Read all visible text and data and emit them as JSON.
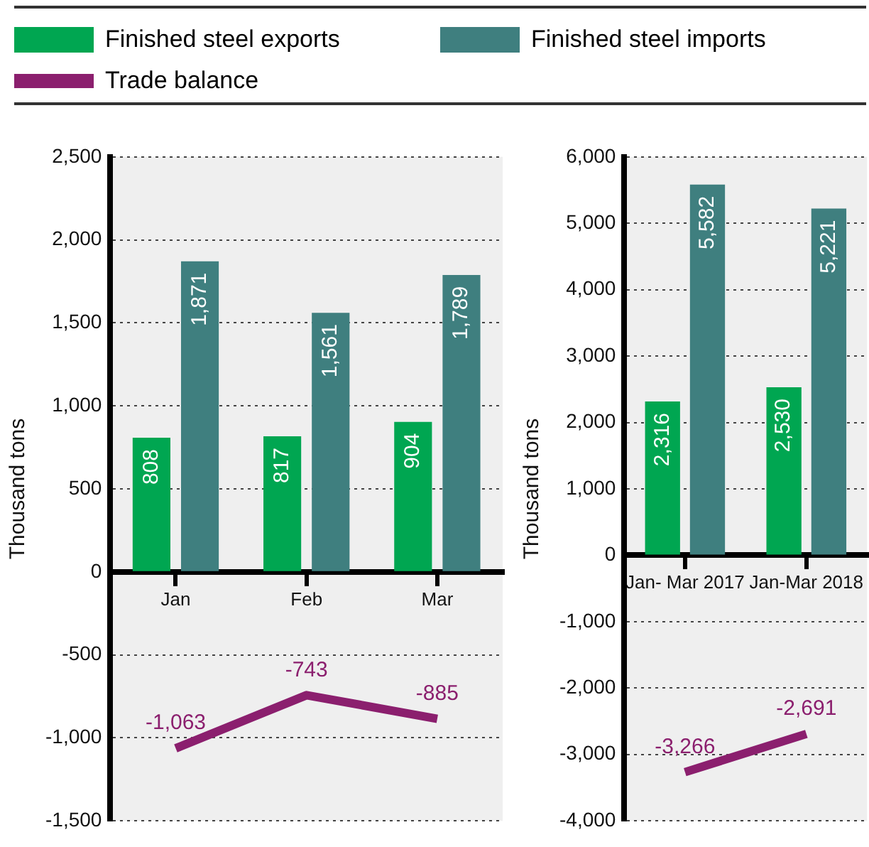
{
  "chart_data": [
    {
      "type": "bar",
      "ylabel": "Thousand tons",
      "categories": [
        "Jan",
        "Feb",
        "Mar"
      ],
      "series": [
        {
          "name": "Finished steel exports",
          "color": "#00a651",
          "values": [
            808,
            817,
            904
          ],
          "value_labels": [
            "808",
            "817",
            "904"
          ]
        },
        {
          "name": "Finished steel imports",
          "color": "#3f7f7f",
          "values": [
            1871,
            1561,
            1789
          ],
          "value_labels": [
            "1,871",
            "1,561",
            "1,789"
          ]
        },
        {
          "name": "Trade balance",
          "type": "line",
          "color": "#8b1f6e",
          "values": [
            -1063,
            -743,
            -885
          ],
          "value_labels": [
            "-1,063",
            "-743",
            "-885"
          ]
        }
      ],
      "ylim": [
        -1500,
        2500
      ],
      "yticks": [
        {
          "value": -1500,
          "label": "-1,500"
        },
        {
          "value": -1000,
          "label": "-1,000"
        },
        -500,
        0,
        500,
        {
          "value": 1000,
          "label": "1,000"
        },
        {
          "value": 1500,
          "label": "1,500"
        },
        {
          "value": 2000,
          "label": "2,000"
        },
        {
          "value": 2500,
          "label": "2,500"
        }
      ],
      "grid": "y",
      "legend": "top",
      "marker": "none",
      "line_style": "solid"
    },
    {
      "type": "bar",
      "ylabel": "Thousand tons",
      "categories": [
        "Jan- Mar 2017",
        "Jan-Mar 2018"
      ],
      "series": [
        {
          "color": "#00a651",
          "values": [
            2316,
            2530
          ],
          "value_labels": [
            "2,316",
            "2,530"
          ]
        },
        {
          "color": "#3f7f7f",
          "values": [
            5582,
            5221
          ],
          "value_labels": [
            "5,582",
            "5,221"
          ]
        },
        {
          "type": "line",
          "color": "#8b1f6e",
          "values": [
            -3266,
            -2691
          ],
          "value_labels": [
            "-3,266",
            "-2,691"
          ]
        }
      ],
      "ylim": [
        -4000,
        6000
      ],
      "yticks": [
        {
          "value": -4000,
          "label": "-4,000"
        },
        {
          "value": -3000,
          "label": "-3,000"
        },
        {
          "value": -2000,
          "label": "-2,000"
        },
        {
          "value": -1000,
          "label": "-1,000"
        },
        0,
        {
          "value": 1000,
          "label": "1,000"
        },
        {
          "value": 2000,
          "label": "2,000"
        },
        {
          "value": 3000,
          "label": "3,000"
        },
        {
          "value": 4000,
          "label": "4,000"
        },
        {
          "value": 5000,
          "label": "5,000"
        },
        {
          "value": 6000,
          "label": "6,000"
        }
      ],
      "grid": "y",
      "marker": "none",
      "line_style": "solid"
    }
  ]
}
